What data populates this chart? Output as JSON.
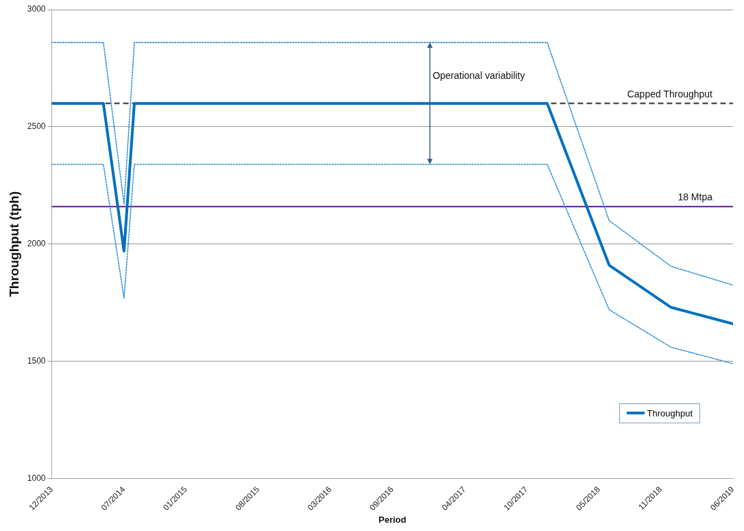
{
  "chart_data": {
    "type": "line",
    "xlabel": "Period",
    "ylabel": "Throughput (tph)",
    "x": [
      "2013-12",
      "2014-05",
      "2014-07",
      "2014-08",
      "2017-12",
      "2018-06",
      "2018-12",
      "2019-06"
    ],
    "series": [
      {
        "name": "Throughput",
        "color": "#0070c0",
        "line_style": "solid",
        "values": [
          2600,
          2600,
          1970,
          2600,
          2600,
          1910,
          1730,
          1660
        ]
      },
      {
        "color": "#2f8fd8",
        "line_style": "dotted",
        "values": [
          2860,
          2860,
          2170,
          2860,
          2860,
          2100,
          1905,
          1825
        ]
      },
      {
        "color": "#2f8fd8",
        "line_style": "dotted",
        "values": [
          2340,
          2340,
          1770,
          2340,
          2340,
          1720,
          1560,
          1490
        ]
      }
    ],
    "xlim": [
      "2013-12",
      "2019-06"
    ],
    "xticks": [
      {
        "value": "2013-12",
        "label": "12/2013"
      },
      {
        "value": "2014-07",
        "label": "07/2014"
      },
      {
        "value": "2015-01",
        "label": "01/2015"
      },
      {
        "value": "2015-08",
        "label": "08/2015"
      },
      {
        "value": "2016-03",
        "label": "03/2016"
      },
      {
        "value": "2016-09",
        "label": "09/2016"
      },
      {
        "value": "2017-04",
        "label": "04/2017"
      },
      {
        "value": "2017-10",
        "label": "10/2017"
      },
      {
        "value": "2018-05",
        "label": "05/2018"
      },
      {
        "value": "2018-11",
        "label": "11/2018"
      },
      {
        "value": "2019-06",
        "label": "06/2019"
      }
    ],
    "ylim": [
      1000,
      3000
    ],
    "yticks": [
      1000,
      1500,
      2000,
      2500,
      3000
    ],
    "ref_lines": [
      {
        "axis": "y",
        "value": 2600,
        "label": "Capped Throughput",
        "color": "#404040",
        "line_style": "dashed"
      },
      {
        "axis": "y",
        "value": 2160,
        "label": "18 Mtpa",
        "color": "#7030a0",
        "line_style": "solid"
      }
    ],
    "annotations": [
      "Operational variability"
    ],
    "grid": "y",
    "legend": "bottom right",
    "marker": "none"
  }
}
